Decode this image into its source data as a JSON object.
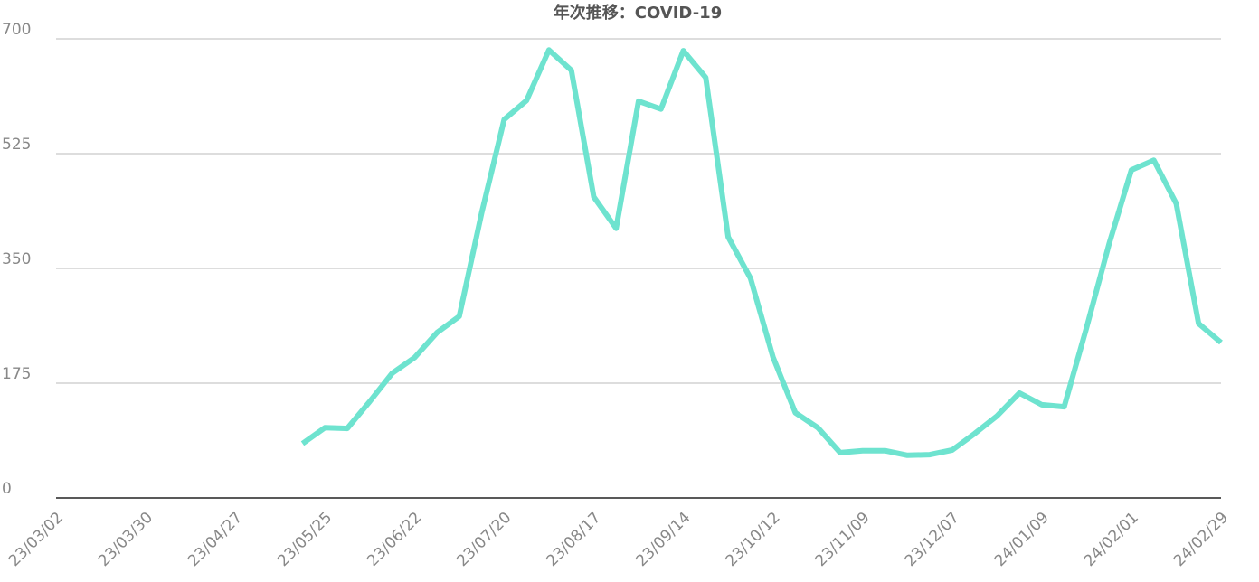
{
  "chart_data": {
    "type": "line",
    "title": "年次推移：COVID-19",
    "categories": [
      "23/03/02",
      null,
      null,
      null,
      "23/03/30",
      null,
      null,
      null,
      "23/04/27",
      null,
      null,
      null,
      "23/05/25",
      null,
      null,
      null,
      "23/06/22",
      null,
      null,
      null,
      "23/07/20",
      null,
      null,
      null,
      "23/08/17",
      null,
      null,
      null,
      "23/09/14",
      null,
      null,
      null,
      "23/10/12",
      null,
      null,
      null,
      "23/11/09",
      null,
      null,
      null,
      "23/12/07",
      null,
      null,
      null,
      "24/01/09",
      null,
      null,
      null,
      "24/02/01",
      null,
      null,
      null,
      "24/02/29"
    ],
    "series": [
      {
        "name": "COVID-19",
        "color": "#6ee3cf",
        "values": [
          null,
          null,
          null,
          null,
          null,
          null,
          null,
          null,
          null,
          null,
          null,
          83,
          107,
          106,
          147,
          190,
          214,
          252,
          277,
          435,
          577,
          606,
          683,
          652,
          459,
          411,
          605,
          593,
          682,
          641,
          398,
          335,
          215,
          130,
          107,
          69,
          72,
          72,
          65,
          66,
          73,
          98,
          125,
          160,
          142,
          139,
          260,
          387,
          500,
          515,
          449,
          266,
          237
        ]
      }
    ],
    "ylim": [
      0,
      700
    ],
    "yticks": [
      0,
      175,
      350,
      525,
      700
    ],
    "grid": true
  }
}
